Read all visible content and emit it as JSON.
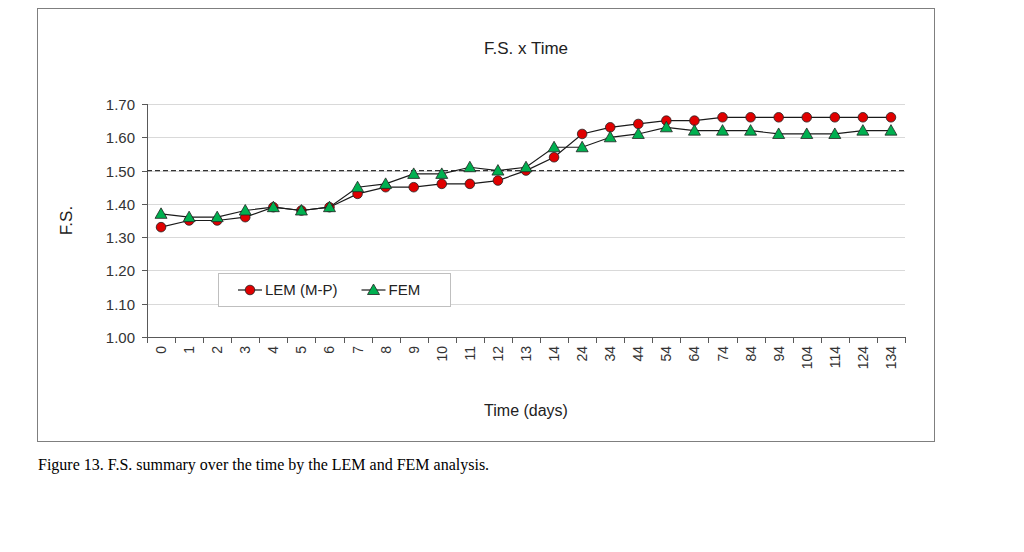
{
  "chart_data": {
    "type": "line",
    "title": "F.S. x Time",
    "x_label": "Time (days)",
    "y_label": "F.S.",
    "caption": "Figure 13. F.S. summary over the time by the LEM and FEM analysis.",
    "categories": [
      "0",
      "1",
      "2",
      "3",
      "4",
      "5",
      "6",
      "7",
      "8",
      "9",
      "10",
      "11",
      "12",
      "13",
      "14",
      "24",
      "34",
      "44",
      "54",
      "64",
      "74",
      "84",
      "94",
      "104",
      "114",
      "124",
      "134"
    ],
    "series": [
      {
        "name": "LEM (M-P)",
        "color": "#e00000",
        "marker": "circle",
        "values": [
          1.33,
          1.35,
          1.35,
          1.36,
          1.39,
          1.38,
          1.39,
          1.43,
          1.45,
          1.45,
          1.46,
          1.46,
          1.47,
          1.5,
          1.54,
          1.61,
          1.63,
          1.64,
          1.65,
          1.65,
          1.66,
          1.66,
          1.66,
          1.66,
          1.66,
          1.66,
          1.66
        ]
      },
      {
        "name": "FEM",
        "color": "#00b050",
        "marker": "triangle",
        "values": [
          1.37,
          1.36,
          1.36,
          1.38,
          1.39,
          1.38,
          1.39,
          1.45,
          1.46,
          1.49,
          1.49,
          1.51,
          1.5,
          1.51,
          1.57,
          1.57,
          1.6,
          1.61,
          1.63,
          1.62,
          1.62,
          1.62,
          1.61,
          1.61,
          1.61,
          1.62,
          1.62
        ]
      }
    ],
    "reference_lines": [
      {
        "value": 1.5,
        "line_style": "dashed"
      }
    ],
    "ylim": [
      1.0,
      1.7
    ],
    "yticks": [
      {
        "value": 1.0,
        "label": "1.00"
      },
      {
        "value": 1.1,
        "label": "1.10"
      },
      {
        "value": 1.2,
        "label": "1.20"
      },
      {
        "value": 1.3,
        "label": "1.30"
      },
      {
        "value": 1.4,
        "label": "1.40"
      },
      {
        "value": 1.5,
        "label": "1.50"
      },
      {
        "value": 1.6,
        "label": "1.60"
      },
      {
        "value": 1.7,
        "label": "1.70"
      }
    ],
    "grid": true,
    "legend": "lower left"
  }
}
